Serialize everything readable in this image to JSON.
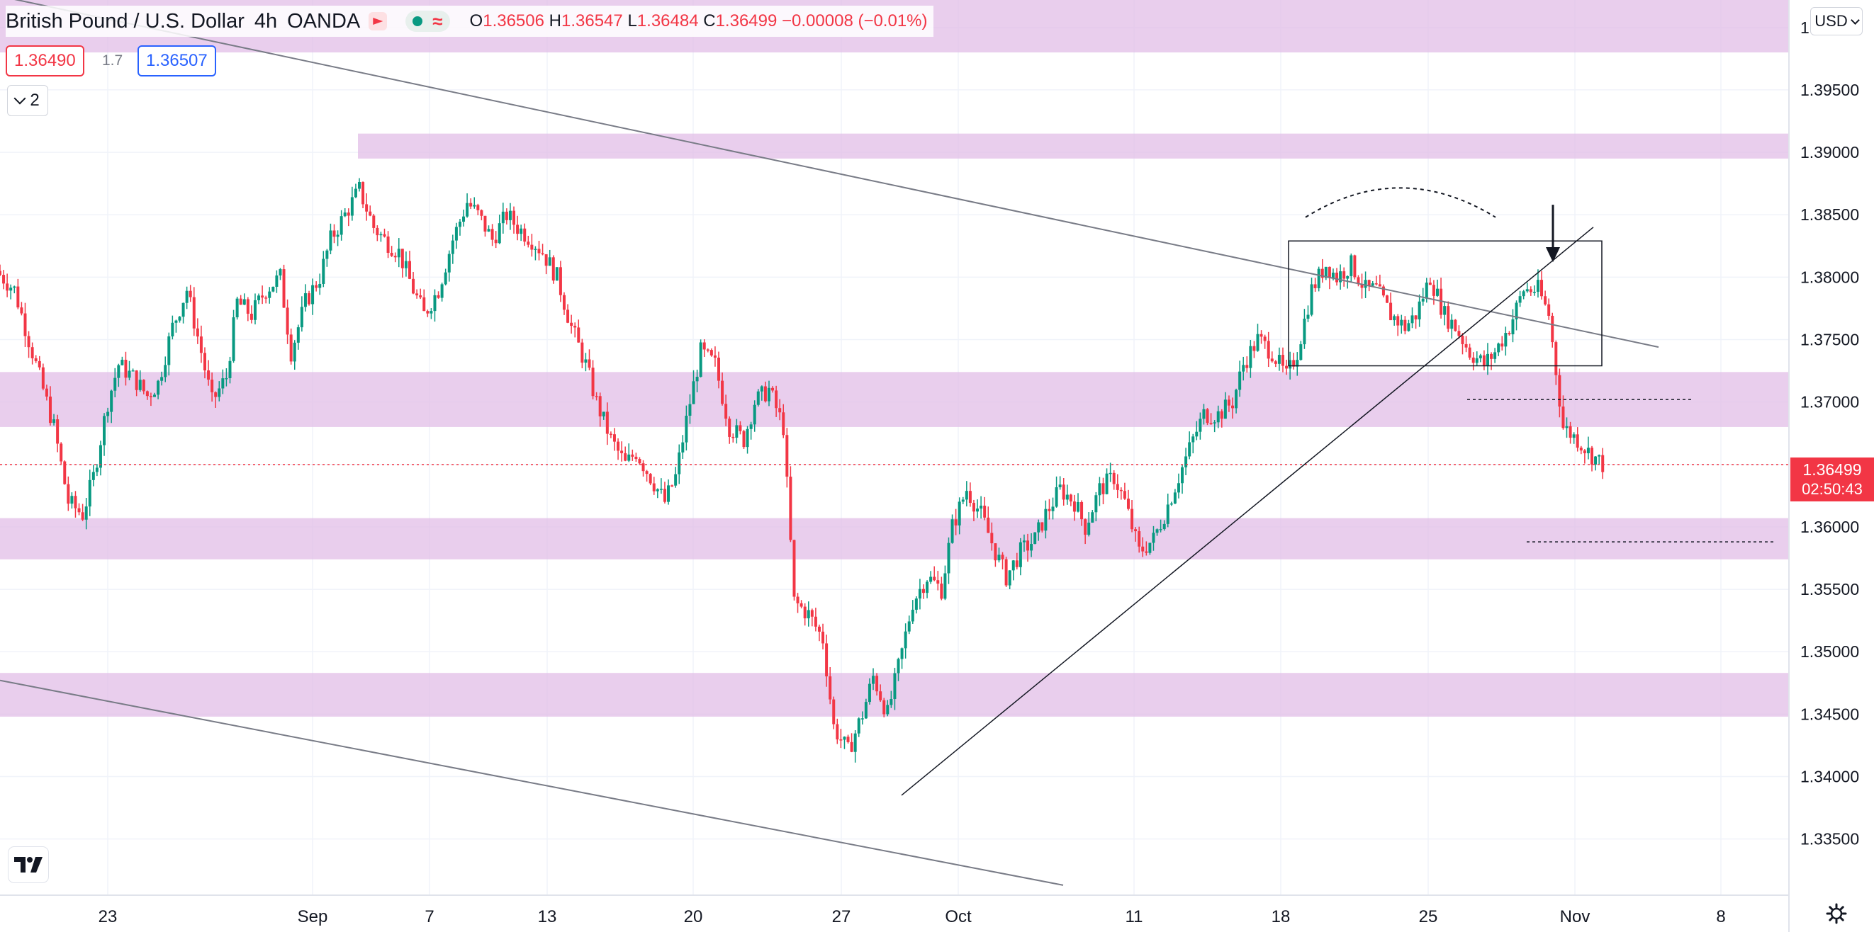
{
  "header": {
    "symbol": "British Pound / U.S. Dollar",
    "interval": "4h",
    "broker": "OANDA",
    "ohlc": {
      "o": "1.36506",
      "h": "1.36547",
      "l": "1.36484",
      "c": "1.36499",
      "change": "−0.00008 (−0.01%)"
    },
    "ohlc_keys": {
      "o": "O",
      "h": "H",
      "l": "L",
      "c": "C"
    }
  },
  "trade": {
    "sell": "1.36490",
    "spread": "1.7",
    "buy": "1.36507"
  },
  "layers": {
    "count": "2"
  },
  "currency": "USD",
  "current_price": {
    "value": "1.36499",
    "countdown": "02:50:43"
  },
  "colors": {
    "up": "#089981",
    "down": "#f23645",
    "zone": "#e1bee7",
    "line": "#787b86"
  },
  "chart_data": {
    "type": "candlestick",
    "ylim": [
      1.3305,
      1.4022
    ],
    "y_ticks": [
      "1.40000",
      "1.39500",
      "1.39000",
      "1.38500",
      "1.38000",
      "1.37500",
      "1.37000",
      "1.36500",
      "1.36000",
      "1.35500",
      "1.35000",
      "1.34500",
      "1.34000",
      "1.33500"
    ],
    "x_ticks": [
      "23",
      "Sep",
      "7",
      "13",
      "20",
      "27",
      "Oct",
      "11",
      "18",
      "25",
      "Nov",
      "8"
    ],
    "current_price": 1.36499,
    "grid": true,
    "zones": [
      {
        "from": 1.398,
        "to": 1.4022
      },
      {
        "from": 1.3895,
        "to": 1.3915
      },
      {
        "from": 1.368,
        "to": 1.3724
      },
      {
        "from": 1.3574,
        "to": 1.3607
      },
      {
        "from": 1.3448,
        "to": 1.3483
      }
    ],
    "candles_close_path": [
      [
        0,
        1.3805
      ],
      [
        5,
        1.379
      ],
      [
        10,
        1.374
      ],
      [
        16,
        1.368
      ],
      [
        20,
        1.362
      ],
      [
        24,
        1.361
      ],
      [
        27,
        1.364
      ],
      [
        31,
        1.37
      ],
      [
        34,
        1.373
      ],
      [
        38,
        1.372
      ],
      [
        42,
        1.3705
      ],
      [
        45,
        1.3715
      ],
      [
        49,
        1.376
      ],
      [
        53,
        1.379
      ],
      [
        57,
        1.374
      ],
      [
        60,
        1.37
      ],
      [
        64,
        1.372
      ],
      [
        67,
        1.378
      ],
      [
        71,
        1.377
      ],
      [
        75,
        1.379
      ],
      [
        79,
        1.38
      ],
      [
        82,
        1.374
      ],
      [
        86,
        1.378
      ],
      [
        90,
        1.38
      ],
      [
        93,
        1.383
      ],
      [
        97,
        1.385
      ],
      [
        101,
        1.387
      ],
      [
        105,
        1.384
      ],
      [
        108,
        1.383
      ],
      [
        112,
        1.382
      ],
      [
        116,
        1.379
      ],
      [
        119,
        1.377
      ],
      [
        123,
        1.379
      ],
      [
        127,
        1.383
      ],
      [
        131,
        1.386
      ],
      [
        134,
        1.385
      ],
      [
        138,
        1.383
      ],
      [
        142,
        1.385
      ],
      [
        145,
        1.384
      ],
      [
        149,
        1.383
      ],
      [
        152,
        1.382
      ],
      [
        156,
        1.38
      ],
      [
        160,
        1.376
      ],
      [
        164,
        1.373
      ],
      [
        167,
        1.37
      ],
      [
        171,
        1.367
      ],
      [
        175,
        1.365
      ],
      [
        178,
        1.366
      ],
      [
        182,
        1.364
      ],
      [
        186,
        1.362
      ],
      [
        189,
        1.364
      ],
      [
        193,
        1.37
      ],
      [
        196,
        1.374
      ],
      [
        200,
        1.373
      ],
      [
        204,
        1.368
      ],
      [
        208,
        1.367
      ],
      [
        211,
        1.37
      ],
      [
        215,
        1.371
      ],
      [
        219,
        1.368
      ],
      [
        222,
        1.354
      ],
      [
        226,
        1.353
      ],
      [
        230,
        1.351
      ],
      [
        233,
        1.344
      ],
      [
        237,
        1.342
      ],
      [
        241,
        1.345
      ],
      [
        244,
        1.348
      ],
      [
        248,
        1.345
      ],
      [
        252,
        1.35
      ],
      [
        255,
        1.354
      ],
      [
        259,
        1.356
      ],
      [
        263,
        1.355
      ],
      [
        266,
        1.36
      ],
      [
        270,
        1.363
      ],
      [
        274,
        1.361
      ],
      [
        278,
        1.358
      ],
      [
        281,
        1.356
      ],
      [
        285,
        1.358
      ],
      [
        289,
        1.359
      ],
      [
        292,
        1.361
      ],
      [
        296,
        1.363
      ],
      [
        300,
        1.362
      ],
      [
        303,
        1.36
      ],
      [
        307,
        1.363
      ],
      [
        311,
        1.364
      ],
      [
        314,
        1.362
      ],
      [
        318,
        1.358
      ],
      [
        322,
        1.359
      ],
      [
        325,
        1.361
      ],
      [
        329,
        1.364
      ],
      [
        333,
        1.367
      ],
      [
        336,
        1.369
      ],
      [
        340,
        1.369
      ],
      [
        344,
        1.37
      ],
      [
        347,
        1.373
      ],
      [
        351,
        1.375
      ],
      [
        355,
        1.374
      ],
      [
        359,
        1.372
      ],
      [
        362,
        1.374
      ],
      [
        366,
        1.379
      ],
      [
        370,
        1.381
      ],
      [
        373,
        1.38
      ],
      [
        377,
        1.381
      ],
      [
        381,
        1.379
      ],
      [
        384,
        1.379
      ],
      [
        388,
        1.377
      ],
      [
        392,
        1.376
      ],
      [
        395,
        1.377
      ],
      [
        399,
        1.38
      ],
      [
        403,
        1.377
      ],
      [
        406,
        1.376
      ],
      [
        410,
        1.374
      ],
      [
        414,
        1.373
      ],
      [
        417,
        1.374
      ],
      [
        421,
        1.376
      ],
      [
        425,
        1.379
      ],
      [
        429,
        1.379
      ],
      [
        432,
        1.377
      ],
      [
        436,
        1.368
      ],
      [
        440,
        1.367
      ],
      [
        443,
        1.366
      ],
      [
        447,
        1.365
      ]
    ]
  }
}
